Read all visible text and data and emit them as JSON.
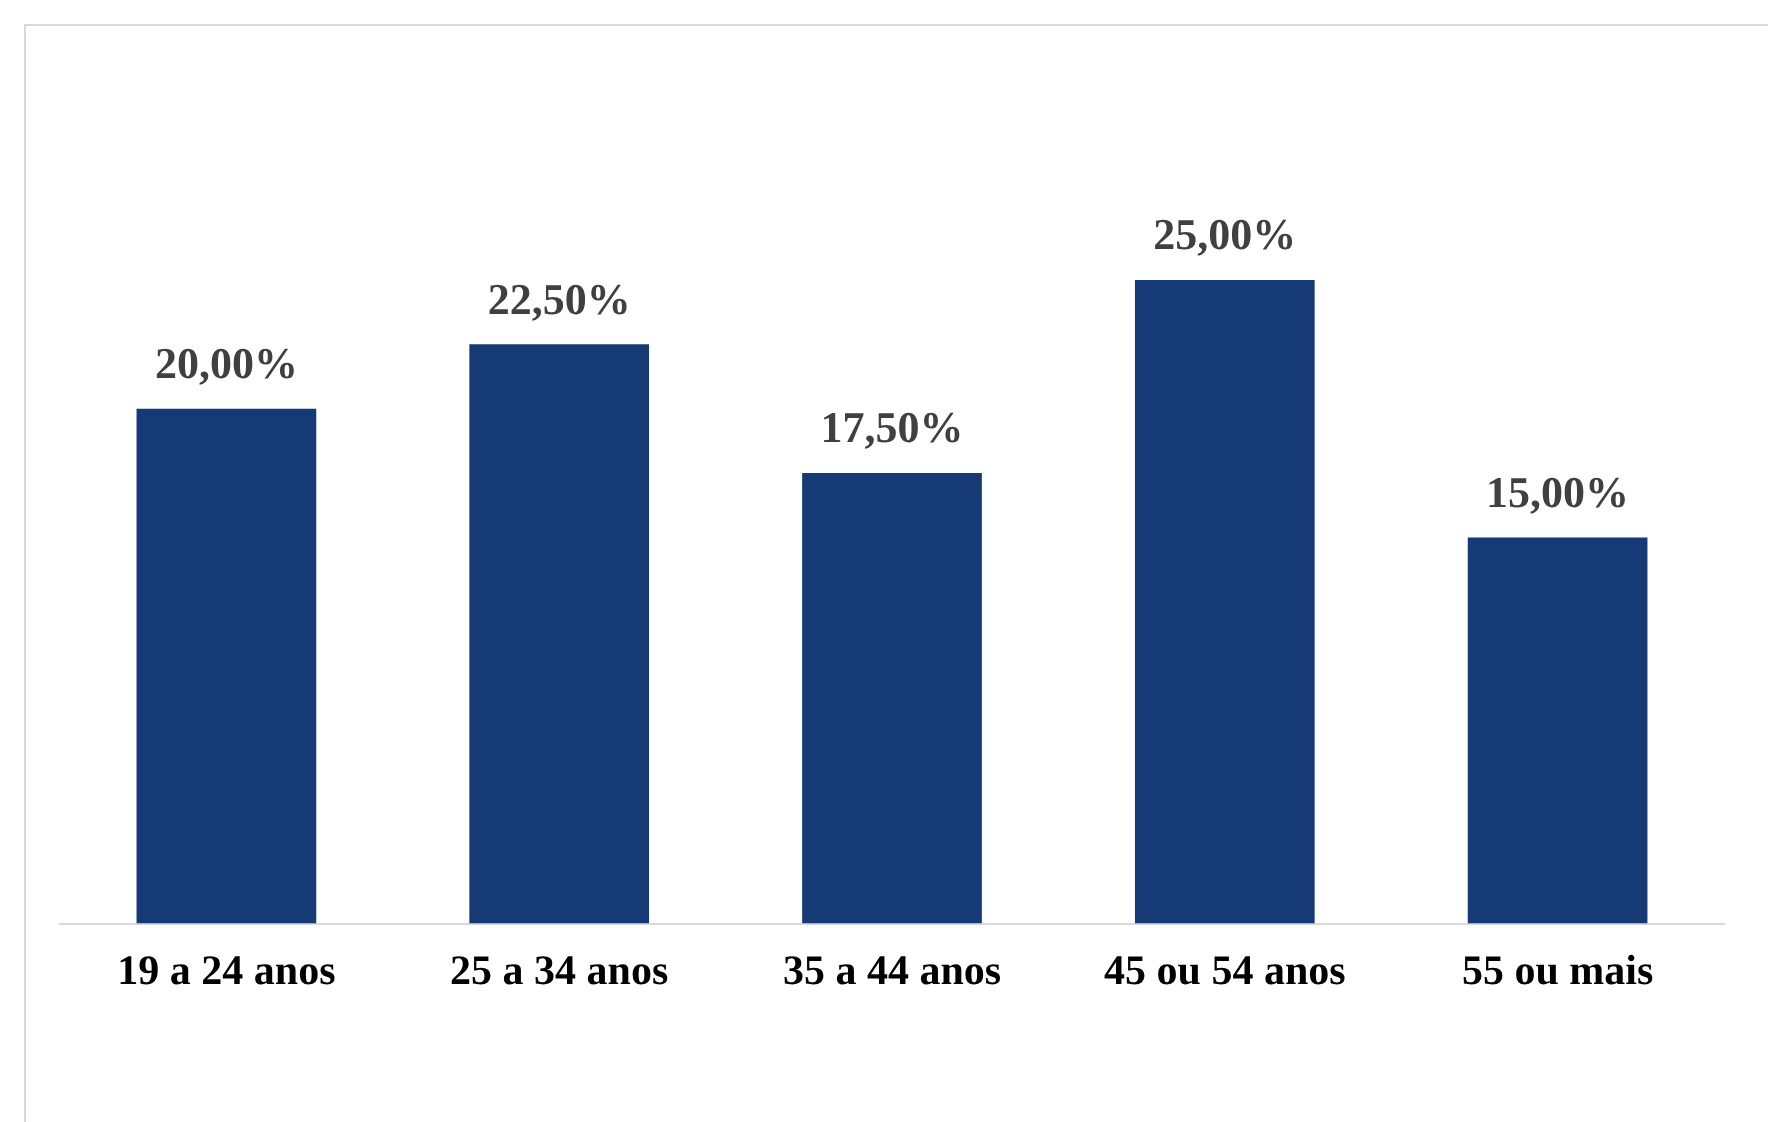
{
  "chart_data": {
    "type": "bar",
    "categories": [
      "19 a 24 anos",
      "25 a 34 anos",
      "35 a 44 anos",
      "45 ou 54 anos",
      "55 ou mais"
    ],
    "values": [
      20,
      22.5,
      17.5,
      25,
      15
    ],
    "value_labels": [
      "20,00%",
      "22,50%",
      "17,50%",
      "25,00%",
      "15,00%"
    ],
    "color": "#163a75",
    "relative": false,
    "grid": false,
    "legend": false
  }
}
